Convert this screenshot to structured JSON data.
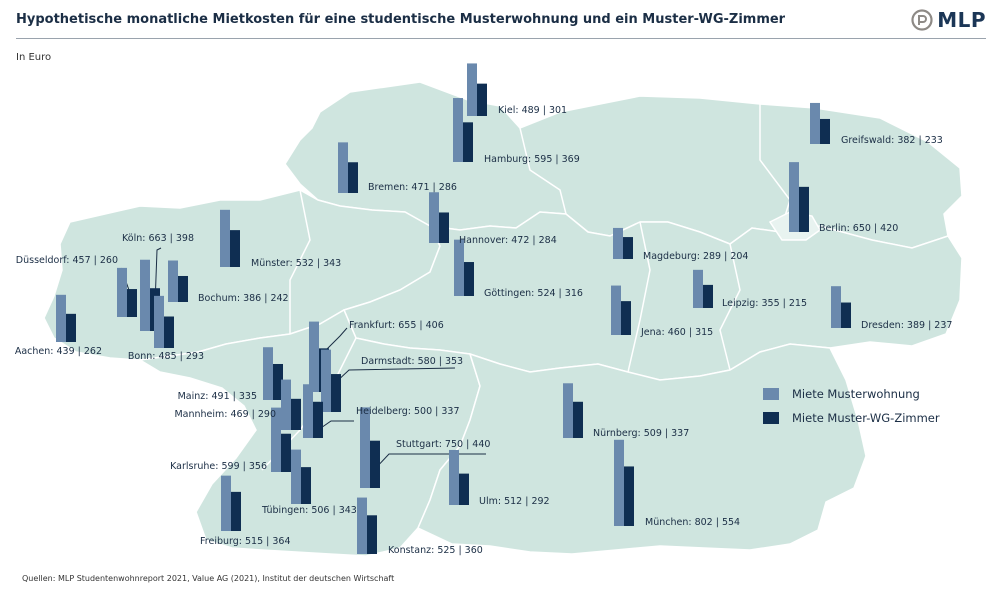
{
  "header": {
    "title": "Hypothetische monatliche Mietkosten für eine studentische Musterwohnung und ein Muster-WG-Zimmer",
    "unit": "In Euro",
    "logo_text": "MLP"
  },
  "footer": {
    "source": "Quellen: MLP Studentenwohnreport 2021, Value AG (2021), Institut der deutschen Wirtschaft"
  },
  "colors": {
    "musterwohnung": "#6a89ad",
    "wg_zimmer": "#0f2e52",
    "map_fill": "#cfe5df",
    "map_border": "#ffffff",
    "background": "#ffffff"
  },
  "chart_data": {
    "type": "bar",
    "title": "Hypothetische monatliche Mietkosten für eine studentische Musterwohnung und ein Muster-WG-Zimmer",
    "unit": "In Euro",
    "legend_position": "right",
    "grid": false,
    "series": [
      {
        "name": "Miete Musterwohnung",
        "key": "wohnung"
      },
      {
        "name": "Miete Muster-WG-Zimmer",
        "key": "wg"
      }
    ],
    "cities": [
      {
        "name": "Kiel",
        "label": "Kiel: 489 | 301",
        "wohnung": 489,
        "wg": 301
      },
      {
        "name": "Hamburg",
        "label": "Hamburg: 595 | 369",
        "wohnung": 595,
        "wg": 369
      },
      {
        "name": "Greifswald",
        "label": "Greifswald: 382 | 233",
        "wohnung": 382,
        "wg": 233
      },
      {
        "name": "Bremen",
        "label": "Bremen: 471 | 286",
        "wohnung": 471,
        "wg": 286
      },
      {
        "name": "Berlin",
        "label": "Berlin: 650 | 420",
        "wohnung": 650,
        "wg": 420
      },
      {
        "name": "Hannover",
        "label": "Hannover: 472 | 284",
        "wohnung": 472,
        "wg": 284
      },
      {
        "name": "Köln",
        "label": "Köln: 663 | 398",
        "wohnung": 663,
        "wg": 398
      },
      {
        "name": "Düsseldorf",
        "label": "Düsseldorf: 457 | 260",
        "wohnung": 457,
        "wg": 260
      },
      {
        "name": "Münster",
        "label": "Münster: 532 | 343",
        "wohnung": 532,
        "wg": 343
      },
      {
        "name": "Magdeburg",
        "label": "Magdeburg: 289 | 204",
        "wohnung": 289,
        "wg": 204
      },
      {
        "name": "Bochum",
        "label": "Bochum: 386 | 242",
        "wohnung": 386,
        "wg": 242
      },
      {
        "name": "Göttingen",
        "label": "Göttingen: 524 | 316",
        "wohnung": 524,
        "wg": 316
      },
      {
        "name": "Leipzig",
        "label": "Leipzig: 355 | 215",
        "wohnung": 355,
        "wg": 215
      },
      {
        "name": "Dresden",
        "label": "Dresden: 389 | 237",
        "wohnung": 389,
        "wg": 237
      },
      {
        "name": "Jena",
        "label": "Jena: 460 | 315",
        "wohnung": 460,
        "wg": 315
      },
      {
        "name": "Aachen",
        "label": "Aachen: 439 | 262",
        "wohnung": 439,
        "wg": 262
      },
      {
        "name": "Bonn",
        "label": "Bonn: 485 | 293",
        "wohnung": 485,
        "wg": 293
      },
      {
        "name": "Frankfurt",
        "label": "Frankfurt: 655 | 406",
        "wohnung": 655,
        "wg": 406
      },
      {
        "name": "Darmstadt",
        "label": "Darmstadt: 580 | 353",
        "wohnung": 580,
        "wg": 353
      },
      {
        "name": "Mainz",
        "label": "Mainz: 491 | 335",
        "wohnung": 491,
        "wg": 335
      },
      {
        "name": "Mannheim",
        "label": "Mannheim: 469 | 290",
        "wohnung": 469,
        "wg": 290
      },
      {
        "name": "Heidelberg",
        "label": "Heidelberg: 500 | 337",
        "wohnung": 500,
        "wg": 337
      },
      {
        "name": "Nürnberg",
        "label": "Nürnberg: 509 | 337",
        "wohnung": 509,
        "wg": 337
      },
      {
        "name": "Stuttgart",
        "label": "Stuttgart: 750 | 440",
        "wohnung": 750,
        "wg": 440
      },
      {
        "name": "Karlsruhe",
        "label": "Karlsruhe: 599 | 356",
        "wohnung": 599,
        "wg": 356
      },
      {
        "name": "Ulm",
        "label": "Ulm: 512 | 292",
        "wohnung": 512,
        "wg": 292
      },
      {
        "name": "Tübingen",
        "label": "Tübingen: 506 | 343",
        "wohnung": 506,
        "wg": 343
      },
      {
        "name": "München",
        "label": "München: 802 | 554",
        "wohnung": 802,
        "wg": 554
      },
      {
        "name": "Freiburg",
        "label": "Freiburg: 515 | 364",
        "wohnung": 515,
        "wg": 364
      },
      {
        "name": "Konstanz",
        "label": "Konstanz: 525 | 360",
        "wohnung": 525,
        "wg": 360
      }
    ]
  }
}
